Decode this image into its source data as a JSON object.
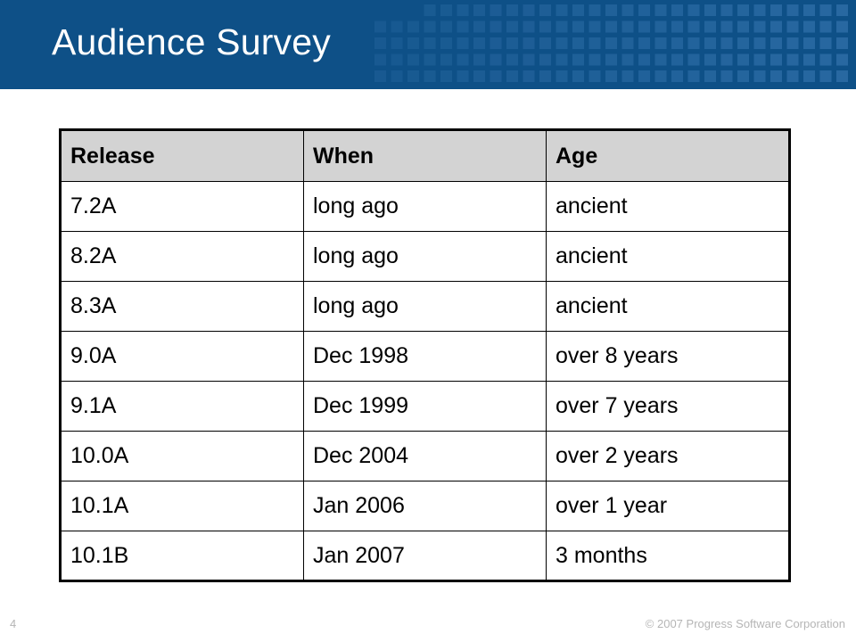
{
  "slide": {
    "title": "Audience Survey",
    "page_number": "4",
    "copyright": "© 2007 Progress Software Corporation"
  },
  "colors": {
    "header_background": "#0e5087",
    "header_squares": "#2a6aa3",
    "table_header_background": "#d3d3d3"
  },
  "table": {
    "headers": [
      "Release",
      "When",
      "Age"
    ],
    "rows": [
      [
        "7.2A",
        "long ago",
        "ancient"
      ],
      [
        "8.2A",
        "long ago",
        "ancient"
      ],
      [
        "8.3A",
        "long ago",
        "ancient"
      ],
      [
        "9.0A",
        "Dec 1998",
        "over 8 years"
      ],
      [
        "9.1A",
        "Dec 1999",
        "over 7 years"
      ],
      [
        "10.0A",
        "Dec 2004",
        "over 2 years"
      ],
      [
        "10.1A",
        "Jan 2006",
        "over 1 year"
      ],
      [
        "10.1B",
        "Jan 2007",
        "3 months"
      ]
    ]
  }
}
